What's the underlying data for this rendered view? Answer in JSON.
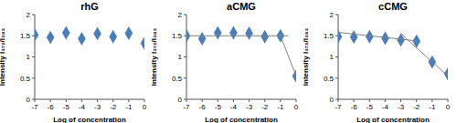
{
  "chart_data": [
    {
      "type": "scatter",
      "title": "rhG",
      "x_label": "Log of concentration",
      "y_label": "Intensity I₃₇₂/I₃₈₃",
      "xlim": [
        -7,
        0
      ],
      "ylim": [
        0,
        2
      ],
      "xticks": [
        -7,
        -6,
        -5,
        -4,
        -3,
        -2,
        -1,
        0
      ],
      "yticks": [
        0,
        0.5,
        1,
        1.5,
        2
      ],
      "grid": false,
      "series": [
        {
          "type": "scatter",
          "color": "#4a7ebb",
          "marker": "diamond",
          "x": [
            -7,
            -6,
            -5,
            -4,
            -3,
            -2,
            -1,
            0
          ],
          "values": [
            1.52,
            1.46,
            1.57,
            1.43,
            1.55,
            1.48,
            1.56,
            1.32
          ]
        }
      ]
    },
    {
      "type": "scatter",
      "title": "aCMG",
      "x_label": "Log of concentration",
      "y_label": "Intensity I₃₇₂/I₃₈₃",
      "xlim": [
        -7,
        0
      ],
      "ylim": [
        0,
        2
      ],
      "xticks": [
        -7,
        -6,
        -5,
        -4,
        -3,
        -2,
        -1,
        0
      ],
      "yticks": [
        0,
        0.5,
        1,
        1.5,
        2
      ],
      "grid": false,
      "series": [
        {
          "type": "scatter",
          "color": "#4a7ebb",
          "marker": "diamond",
          "x": [
            -7,
            -6,
            -5,
            -4,
            -3,
            -2,
            -1,
            0
          ],
          "values": [
            1.5,
            1.43,
            1.57,
            1.57,
            1.56,
            1.48,
            1.5,
            0.55
          ]
        },
        {
          "type": "line",
          "color": "#808080",
          "line_style": "solid",
          "x": [
            -7,
            -0.5
          ],
          "values": [
            1.5,
            1.5
          ]
        },
        {
          "type": "line",
          "color": "#808080",
          "line_style": "solid",
          "x": [
            -1,
            0
          ],
          "values": [
            1.5,
            0.55
          ]
        }
      ]
    },
    {
      "type": "scatter",
      "title": "cCMG",
      "x_label": "Log of concentration",
      "y_label": "Intensity I₃₇₂/I₃₈₃",
      "xlim": [
        -7,
        0
      ],
      "ylim": [
        0,
        2
      ],
      "xticks": [
        -7,
        -6,
        -5,
        -4,
        -3,
        -2,
        -1,
        0
      ],
      "yticks": [
        0,
        0.5,
        1,
        1.5,
        2
      ],
      "grid": false,
      "series": [
        {
          "type": "scatter",
          "color": "#4a7ebb",
          "marker": "diamond",
          "x": [
            -7,
            -6,
            -5,
            -4,
            -3,
            -2,
            -1,
            0
          ],
          "values": [
            1.48,
            1.47,
            1.48,
            1.44,
            1.4,
            1.37,
            0.88,
            0.6
          ]
        },
        {
          "type": "line",
          "color": "#808080",
          "line_style": "solid",
          "x": [
            -7,
            -2
          ],
          "values": [
            1.58,
            1.38
          ]
        },
        {
          "type": "line",
          "color": "#808080",
          "line_style": "solid",
          "x": [
            -3,
            0
          ],
          "values": [
            1.55,
            0.55
          ]
        }
      ]
    }
  ]
}
